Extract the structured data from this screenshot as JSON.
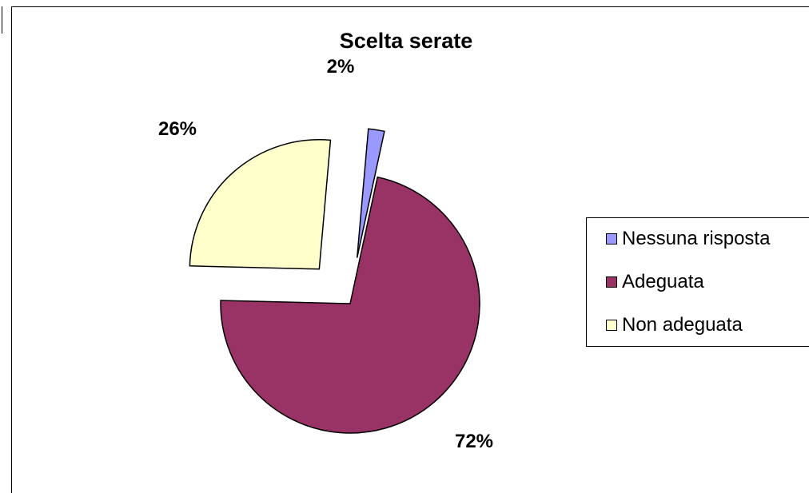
{
  "chart_data": {
    "type": "pie",
    "title": "Scelta serate",
    "slices": [
      {
        "name": "Nessuna risposta",
        "value": 2,
        "label": "2%",
        "color": "#9999ff",
        "exploded": true
      },
      {
        "name": "Adeguata",
        "value": 72,
        "label": "72%",
        "color": "#993366",
        "exploded": false
      },
      {
        "name": "Non adeguata",
        "value": 26,
        "label": "26%",
        "color": "#ffffcc",
        "exploded": true
      }
    ],
    "legend_position": "right"
  }
}
